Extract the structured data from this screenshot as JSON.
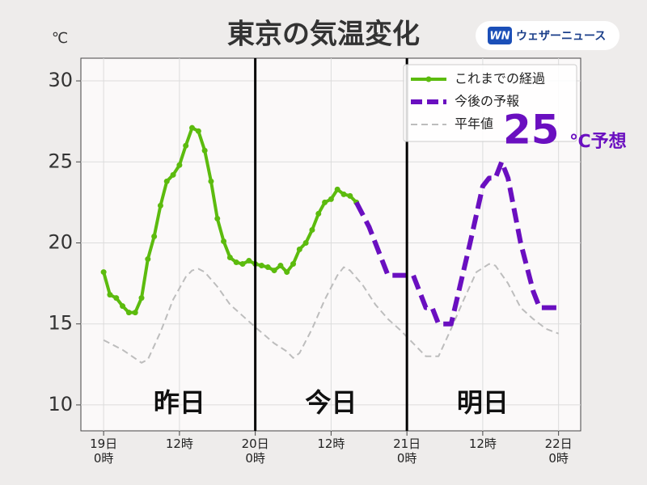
{
  "chart_data": {
    "type": "line",
    "title": "東京の気温変化",
    "logo": {
      "mark": "WN",
      "text": "ウェザーニュース"
    },
    "y_label": "℃",
    "xlim": [
      -3.6,
      75.5
    ],
    "ylim": [
      8.4,
      31.4
    ],
    "xticks": [
      {
        "value": 0,
        "label": "19日\n0時"
      },
      {
        "value": 12,
        "label": "12時"
      },
      {
        "value": 24,
        "label": "20日\n0時"
      },
      {
        "value": 36,
        "label": "12時"
      },
      {
        "value": 48,
        "label": "21日\n0時"
      },
      {
        "value": 60,
        "label": "12時"
      },
      {
        "value": 72,
        "label": "22日\n0時"
      }
    ],
    "yticks": [
      10,
      15,
      20,
      25,
      30
    ],
    "grid": true,
    "legend": "upper right",
    "vlines": [
      24,
      48
    ],
    "day_labels": [
      "昨日",
      "今日",
      "明日"
    ],
    "annotation": [
      "25",
      "℃予想"
    ],
    "annotation_color": "#6a0fc0",
    "series": [
      {
        "name": "これまでの経過",
        "color": "#5cbb0e",
        "linestyle": "solid",
        "markers": true,
        "x": [
          0,
          1,
          2,
          3,
          4,
          5,
          6,
          7,
          8,
          9,
          10,
          11,
          12,
          13,
          14,
          15,
          16,
          17,
          18,
          19,
          20,
          21,
          22,
          23,
          24,
          25,
          26,
          27,
          28,
          29,
          30,
          31,
          32,
          33,
          34,
          35,
          36,
          37,
          38,
          39,
          40
        ],
        "values": [
          18.2,
          16.8,
          16.6,
          16.1,
          15.7,
          15.7,
          16.6,
          19.0,
          20.4,
          22.3,
          23.8,
          24.2,
          24.8,
          26.0,
          27.1,
          26.9,
          25.7,
          23.8,
          21.5,
          20.1,
          19.1,
          18.8,
          18.7,
          18.9,
          18.7,
          18.6,
          18.5,
          18.3,
          18.6,
          18.2,
          18.7,
          19.6,
          20.0,
          20.8,
          21.8,
          22.5,
          22.7,
          23.3,
          23.0,
          22.9,
          22.5
        ]
      },
      {
        "name": "今後の予報",
        "color": "#6a0fc0",
        "linestyle": "dashed",
        "markers": false,
        "x": [
          40,
          42,
          45,
          49,
          51,
          52,
          53,
          55,
          58,
          60,
          61,
          62,
          63,
          64,
          66,
          68,
          69,
          72
        ],
        "values": [
          22.5,
          21,
          18,
          18,
          16,
          16,
          15,
          15,
          20,
          23.5,
          24,
          24,
          25,
          24,
          20,
          17,
          16,
          16
        ]
      },
      {
        "name": "平年値",
        "color": "#bdbdbd",
        "linestyle": "dashed",
        "markers": false,
        "x": [
          0,
          3,
          6,
          7,
          9,
          11,
          13,
          14,
          15,
          16,
          18,
          20,
          22,
          24,
          27,
          29,
          30,
          31,
          33,
          35,
          37,
          38,
          39,
          41,
          43,
          45,
          47,
          49,
          51,
          53,
          55,
          57,
          59,
          61,
          62,
          64,
          66,
          68,
          70,
          72
        ],
        "values": [
          14.0,
          13.4,
          12.6,
          12.8,
          14.5,
          16.5,
          17.9,
          18.3,
          18.4,
          18.2,
          17.3,
          16.2,
          15.5,
          14.8,
          13.8,
          13.3,
          12.9,
          13.2,
          14.7,
          16.5,
          18.0,
          18.5,
          18.3,
          17.4,
          16.2,
          15.3,
          14.6,
          13.8,
          13.0,
          13.0,
          14.7,
          16.5,
          18.2,
          18.7,
          18.6,
          17.5,
          16.0,
          15.3,
          14.7,
          14.4
        ]
      }
    ]
  }
}
